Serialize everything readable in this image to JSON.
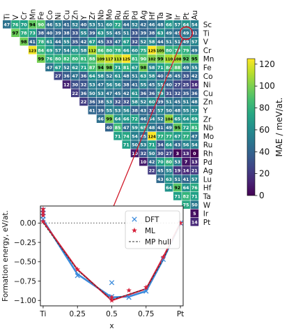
{
  "chart_data": [
    {
      "type": "heatmap",
      "elements": [
        "Ti",
        "V",
        "Cr",
        "Mn",
        "Fe",
        "Co",
        "Ni",
        "Cu",
        "Zn",
        "Y",
        "Zr",
        "Nb",
        "Mo",
        "Ru",
        "Rh",
        "Pd",
        "Ag",
        "Hf",
        "Ta",
        "W",
        "Ir",
        "Pt",
        "Au"
      ],
      "row_labels": [
        "Sc",
        "Ti",
        "V",
        "Cr",
        "Mn",
        "Fe",
        "Co",
        "Ni",
        "Cu",
        "Zn",
        "Y",
        "Zr",
        "Nb",
        "Mo",
        "Ru",
        "Rh",
        "Pd",
        "Ag",
        "Lu",
        "Hf",
        "Ta",
        "W",
        "Ir",
        "Pt"
      ],
      "values": [
        [
          47,
          76,
          70,
          94,
          90,
          46,
          53,
          41,
          52,
          40,
          53,
          51,
          60,
          72,
          44,
          52,
          42,
          46,
          48,
          66,
          57,
          64,
          54
        ],
        [
          null,
          97,
          78,
          73,
          38,
          40,
          39,
          38,
          33,
          55,
          39,
          63,
          55,
          45,
          51,
          33,
          39,
          38,
          63,
          49,
          45,
          49,
          41
        ],
        [
          null,
          null,
          98,
          41,
          78,
          61,
          44,
          55,
          35,
          42,
          67,
          45,
          33,
          47,
          67,
          32,
          52,
          58,
          44,
          51,
          51,
          49,
          57
        ],
        [
          null,
          null,
          null,
          123,
          84,
          69,
          57,
          54,
          65,
          58,
          112,
          86,
          80,
          78,
          66,
          60,
          75,
          125,
          105,
          80,
          79,
          79,
          49
        ],
        [
          null,
          null,
          null,
          null,
          99,
          76,
          80,
          82,
          80,
          81,
          88,
          109,
          117,
          113,
          125,
          81,
          90,
          102,
          99,
          110,
          108,
          92,
          95
        ],
        [
          null,
          null,
          null,
          null,
          null,
          47,
          67,
          52,
          62,
          71,
          87,
          94,
          98,
          71,
          81,
          67,
          98,
          58,
          71,
          84,
          88,
          49,
          55
        ],
        [
          null,
          null,
          null,
          null,
          null,
          null,
          27,
          36,
          47,
          36,
          64,
          58,
          52,
          61,
          48,
          51,
          63,
          58,
          40,
          48,
          45,
          33,
          42
        ],
        [
          null,
          null,
          null,
          null,
          null,
          null,
          null,
          12,
          30,
          32,
          53,
          47,
          56,
          56,
          38,
          41,
          55,
          45,
          55,
          40,
          27,
          25,
          16
        ],
        [
          null,
          null,
          null,
          null,
          null,
          null,
          null,
          null,
          22,
          36,
          50,
          53,
          47,
          45,
          42,
          61,
          36,
          36,
          59,
          31,
          32,
          35,
          36
        ],
        [
          null,
          null,
          null,
          null,
          null,
          null,
          null,
          null,
          null,
          22,
          36,
          38,
          53,
          32,
          32,
          58,
          52,
          60,
          39,
          51,
          45,
          51,
          48
        ],
        [
          null,
          null,
          null,
          null,
          null,
          null,
          null,
          null,
          null,
          null,
          41,
          39,
          55,
          53,
          56,
          38,
          43,
          32,
          57,
          50,
          48,
          55,
          57
        ],
        [
          null,
          null,
          null,
          null,
          null,
          null,
          null,
          null,
          null,
          null,
          null,
          46,
          99,
          64,
          66,
          72,
          46,
          54,
          52,
          104,
          65,
          64,
          69
        ],
        [
          null,
          null,
          null,
          null,
          null,
          null,
          null,
          null,
          null,
          null,
          null,
          null,
          40,
          85,
          47,
          59,
          65,
          48,
          41,
          49,
          95,
          72,
          81
        ],
        [
          null,
          null,
          null,
          null,
          null,
          null,
          null,
          null,
          null,
          null,
          null,
          null,
          null,
          71,
          74,
          54,
          45,
          124,
          77,
          77,
          67,
          77,
          47
        ],
        [
          null,
          null,
          null,
          null,
          null,
          null,
          null,
          null,
          null,
          null,
          null,
          null,
          null,
          null,
          71,
          50,
          53,
          71,
          34,
          64,
          43,
          56,
          54
        ],
        [
          null,
          null,
          null,
          null,
          null,
          null,
          null,
          null,
          null,
          null,
          null,
          null,
          null,
          null,
          null,
          10,
          32,
          50,
          30,
          27,
          3,
          13,
          0
        ],
        [
          null,
          null,
          null,
          null,
          null,
          null,
          null,
          null,
          null,
          null,
          null,
          null,
          null,
          null,
          null,
          null,
          10,
          42,
          70,
          80,
          53,
          7,
          13
        ],
        [
          null,
          null,
          null,
          null,
          null,
          null,
          null,
          null,
          null,
          null,
          null,
          null,
          null,
          null,
          null,
          null,
          null,
          22,
          45,
          55,
          19,
          14,
          21
        ],
        [
          null,
          null,
          null,
          null,
          null,
          null,
          null,
          null,
          null,
          null,
          null,
          null,
          null,
          null,
          null,
          null,
          null,
          null,
          43,
          63,
          51,
          41,
          57
        ],
        [
          null,
          null,
          null,
          null,
          null,
          null,
          null,
          null,
          null,
          null,
          null,
          null,
          null,
          null,
          null,
          null,
          null,
          null,
          null,
          64,
          92,
          64,
          76
        ],
        [
          null,
          null,
          null,
          null,
          null,
          null,
          null,
          null,
          null,
          null,
          null,
          null,
          null,
          null,
          null,
          null,
          null,
          null,
          null,
          null,
          71,
          82,
          71
        ],
        [
          null,
          null,
          null,
          null,
          null,
          null,
          null,
          null,
          null,
          null,
          null,
          null,
          null,
          null,
          null,
          null,
          null,
          null,
          null,
          null,
          null,
          75,
          50
        ],
        [
          null,
          null,
          null,
          null,
          null,
          null,
          null,
          null,
          null,
          null,
          null,
          null,
          null,
          null,
          null,
          null,
          null,
          null,
          null,
          null,
          null,
          null,
          5
        ],
        [
          null,
          null,
          null,
          null,
          null,
          null,
          null,
          null,
          null,
          null,
          null,
          null,
          null,
          null,
          null,
          null,
          null,
          null,
          null,
          null,
          null,
          null,
          14
        ]
      ],
      "highlighted_cell": {
        "row": "Ti",
        "col": "Pt",
        "value": 49
      },
      "colorbar": {
        "label": "MAE / meV/at.",
        "range": [
          0,
          125
        ],
        "ticks": [
          0,
          20,
          40,
          60,
          80,
          100,
          120
        ],
        "colormap": "viridis"
      }
    },
    {
      "type": "line",
      "xlabel": "x",
      "ylabel": "Formation energy, eV/at.",
      "x_ticks": [
        0,
        0.25,
        0.5,
        0.75,
        1
      ],
      "x_tick_labels": [
        "Ti",
        "0.25",
        "0.5",
        "0.75",
        "Pt"
      ],
      "y_ticks": [
        0.0,
        -0.25,
        -0.5,
        -0.75,
        -1.0
      ],
      "y_tick_labels": [
        "0.00",
        "−0.25",
        "−0.50",
        "−0.75",
        "−1.00"
      ],
      "xlim": [
        -0.02,
        1.02
      ],
      "ylim": [
        -1.07,
        0.22
      ],
      "legend_position": "top-right",
      "reference_line_y": 0,
      "series": [
        {
          "name": "DFT",
          "marker": "x",
          "color": "#3b8bdc",
          "points": [
            [
              0,
              0.17
            ],
            [
              0,
              0.13
            ],
            [
              0,
              0.09
            ],
            [
              0,
              0.05
            ],
            [
              0.25,
              -0.68
            ],
            [
              0.5,
              -0.77
            ],
            [
              0.5,
              -0.95
            ],
            [
              0.625,
              -0.96
            ],
            [
              0.75,
              -0.88
            ],
            [
              0.875,
              -0.47
            ],
            [
              1,
              0
            ]
          ]
        },
        {
          "name": "ML",
          "marker": "star",
          "color": "#d6213b",
          "points": [
            [
              0,
              0.18
            ],
            [
              0,
              0.14
            ],
            [
              0,
              0.1
            ],
            [
              0,
              0.02
            ],
            [
              0.25,
              -0.6
            ],
            [
              0.5,
              -0.96
            ],
            [
              0.5,
              -1.0
            ],
            [
              0.625,
              -0.87
            ],
            [
              0.75,
              -0.83
            ],
            [
              0.875,
              -0.44
            ],
            [
              1,
              0
            ]
          ]
        },
        {
          "name": "MP hull",
          "style": "dashed",
          "color": "#333333",
          "points": [
            [
              0,
              0
            ],
            [
              0.25,
              -0.61
            ],
            [
              0.5,
              -0.99
            ],
            [
              0.75,
              -0.85
            ],
            [
              0.875,
              -0.47
            ],
            [
              1,
              0
            ]
          ]
        }
      ],
      "dft_curve": [
        [
          0,
          0.04
        ],
        [
          0.25,
          -0.66
        ],
        [
          0.5,
          -0.96
        ],
        [
          0.625,
          -0.95
        ],
        [
          0.75,
          -0.88
        ],
        [
          0.875,
          -0.47
        ],
        [
          1,
          0
        ]
      ],
      "ml_curve": [
        [
          0,
          0.02
        ],
        [
          0.25,
          -0.6
        ],
        [
          0.5,
          -1.0
        ],
        [
          0.75,
          -0.85
        ],
        [
          0.875,
          -0.44
        ],
        [
          1,
          0
        ]
      ]
    }
  ]
}
